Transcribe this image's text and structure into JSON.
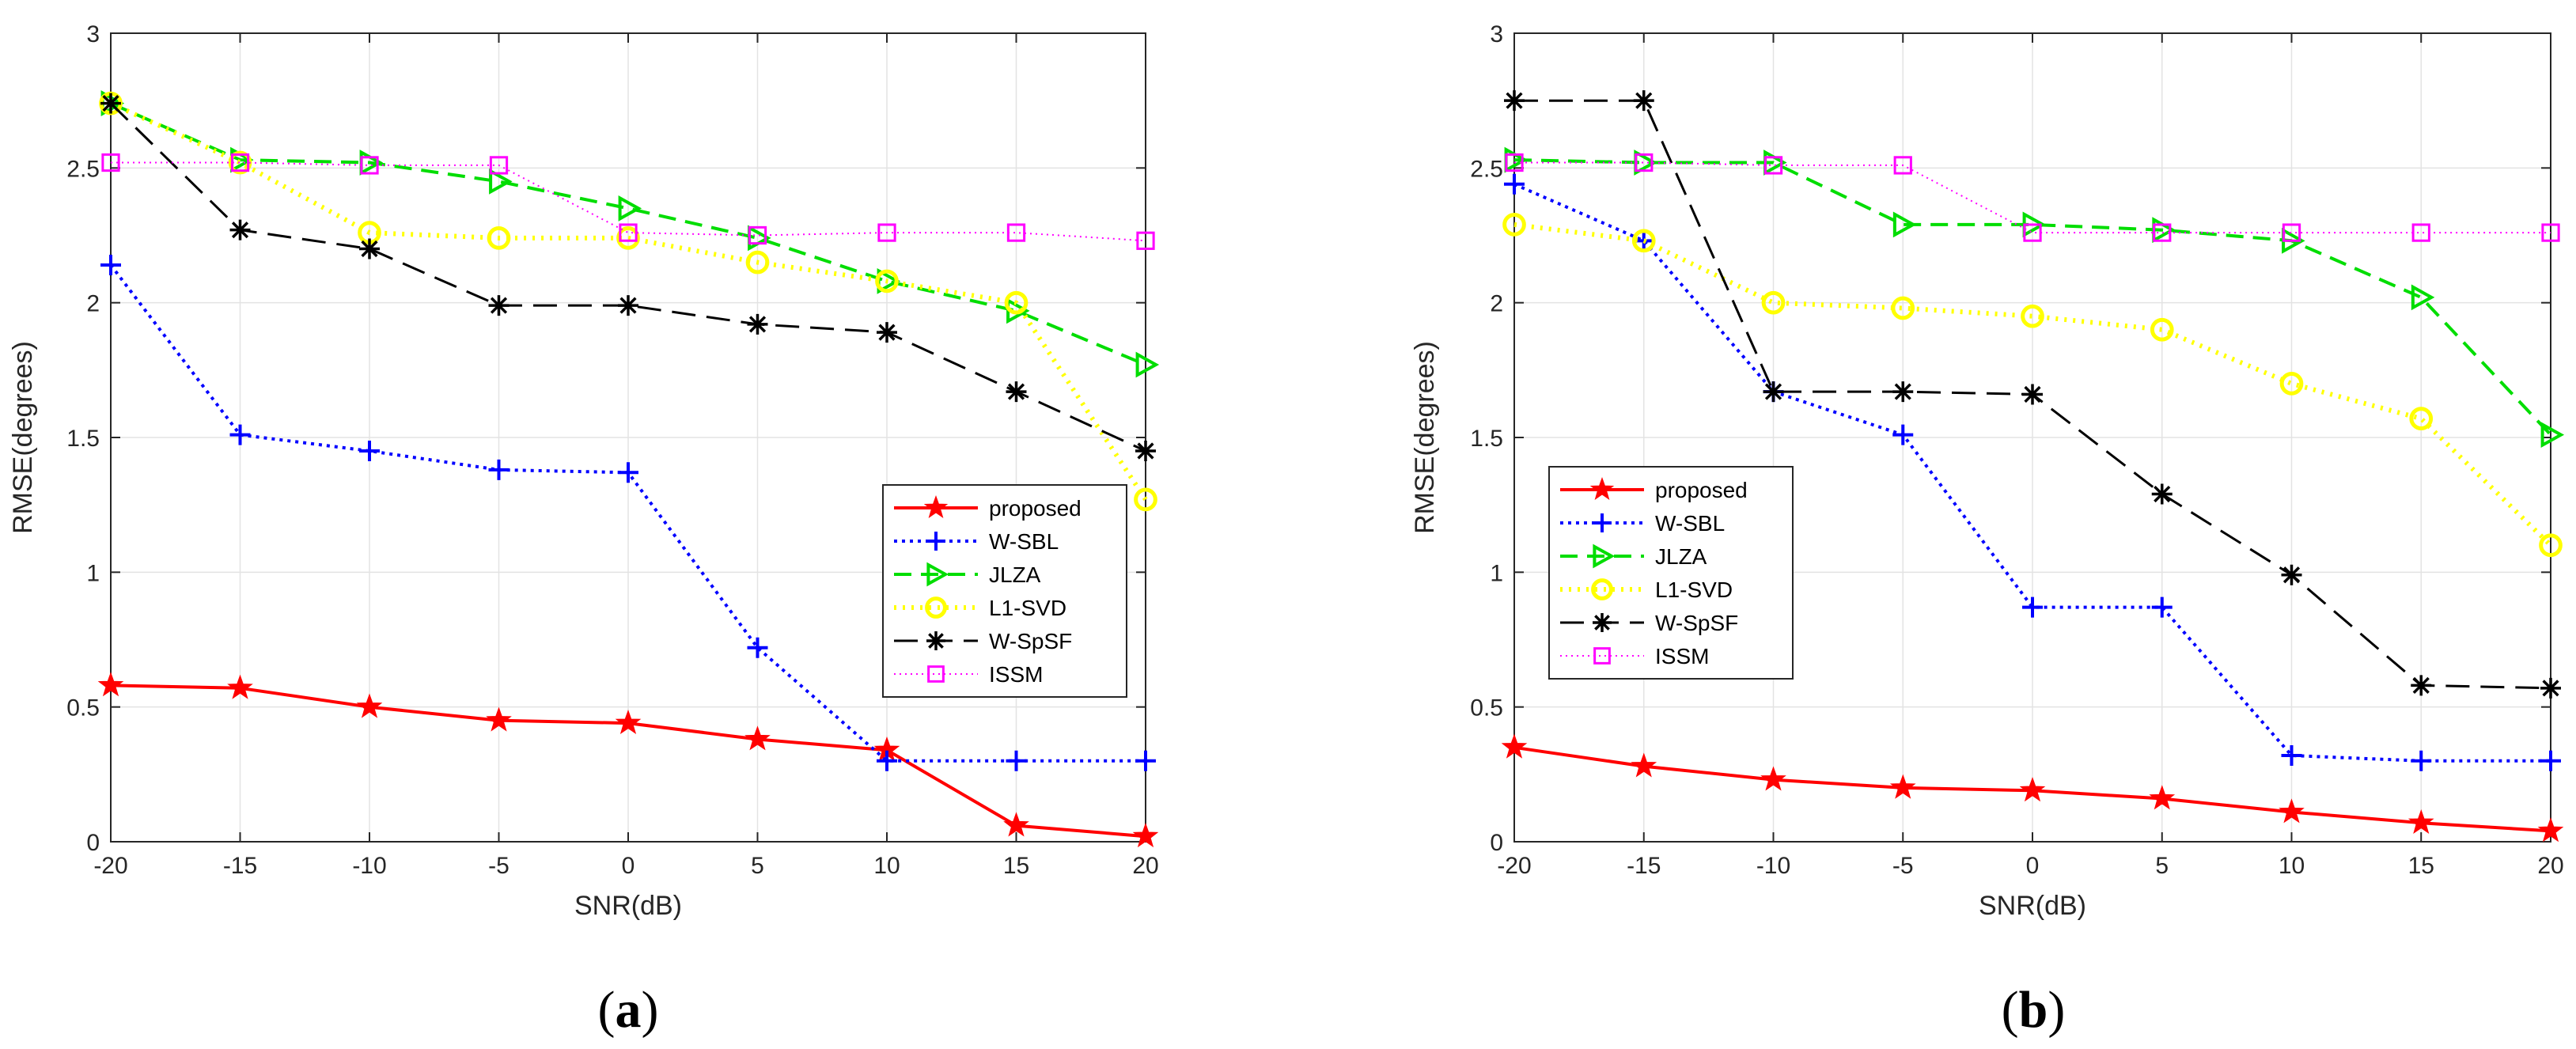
{
  "chart_data": [
    {
      "type": "line",
      "panel_label": "a",
      "caption": {
        "open": "(",
        "label": "a",
        "close": ")"
      },
      "xlabel": "SNR(dB)",
      "ylabel": "RMSE(degrees)",
      "xlim": [
        -20,
        20
      ],
      "ylim": [
        0,
        3
      ],
      "xticks": [
        -20,
        -15,
        -10,
        -5,
        0,
        5,
        10,
        15,
        20
      ],
      "yticks": [
        0,
        0.5,
        1,
        1.5,
        2,
        2.5,
        3
      ],
      "xtick_labels": [
        "-20",
        "-15",
        "-10",
        "-5",
        "0",
        "5",
        "10",
        "15",
        "20"
      ],
      "ytick_labels": [
        "0",
        "0.5",
        "1",
        "1.5",
        "2",
        "2.5",
        "3"
      ],
      "grid": true,
      "legend_position": "lower-right",
      "x": [
        -20,
        -15,
        -10,
        -5,
        0,
        5,
        10,
        15,
        20
      ],
      "series": [
        {
          "name": "proposed",
          "values": [
            0.58,
            0.57,
            0.5,
            0.45,
            0.44,
            0.38,
            0.34,
            0.06,
            0.02
          ],
          "color": "#ff0000",
          "marker": "star",
          "dash": "solid",
          "width": 4
        },
        {
          "name": "W-SBL",
          "values": [
            2.14,
            1.51,
            1.45,
            1.38,
            1.37,
            0.72,
            0.3,
            0.3,
            0.3
          ],
          "color": "#0000ff",
          "marker": "plus",
          "dash": "dotted",
          "width": 4
        },
        {
          "name": "JLZA",
          "values": [
            2.74,
            2.53,
            2.52,
            2.45,
            2.35,
            2.24,
            2.08,
            1.97,
            1.77
          ],
          "color": "#00dd00",
          "marker": "triangle",
          "dash": "dashed",
          "width": 4
        },
        {
          "name": "L1-SVD",
          "values": [
            2.74,
            2.52,
            2.26,
            2.24,
            2.24,
            2.15,
            2.08,
            2.0,
            1.27
          ],
          "color": "#ffff00",
          "marker": "circle",
          "dash": "dotted-thick",
          "width": 6
        },
        {
          "name": "W-SpSF",
          "values": [
            2.74,
            2.27,
            2.2,
            1.99,
            1.99,
            1.92,
            1.89,
            1.67,
            1.45
          ],
          "color": "#000000",
          "marker": "asterisk",
          "dash": "longdash",
          "width": 3
        },
        {
          "name": "ISSM",
          "values": [
            2.52,
            2.52,
            2.51,
            2.51,
            2.26,
            2.25,
            2.26,
            2.26,
            2.23
          ],
          "color": "#ff00ff",
          "marker": "square",
          "dash": "finedot",
          "width": 2
        }
      ]
    },
    {
      "type": "line",
      "panel_label": "b",
      "caption": {
        "open": "(",
        "label": "b",
        "close": ")"
      },
      "xlabel": "SNR(dB)",
      "ylabel": "RMSE(degrees)",
      "xlim": [
        -20,
        20
      ],
      "ylim": [
        0,
        3
      ],
      "xticks": [
        -20,
        -15,
        -10,
        -5,
        0,
        5,
        10,
        15,
        20
      ],
      "yticks": [
        0,
        0.5,
        1,
        1.5,
        2,
        2.5,
        3
      ],
      "xtick_labels": [
        "-20",
        "-15",
        "-10",
        "-5",
        "0",
        "5",
        "10",
        "15",
        "20"
      ],
      "ytick_labels": [
        "0",
        "0.5",
        "1",
        "1.5",
        "2",
        "2.5",
        "3"
      ],
      "grid": true,
      "legend_position": "lower-left",
      "x": [
        -20,
        -15,
        -10,
        -5,
        0,
        5,
        10,
        15,
        20
      ],
      "series": [
        {
          "name": "proposed",
          "values": [
            0.35,
            0.28,
            0.23,
            0.2,
            0.19,
            0.16,
            0.11,
            0.07,
            0.04
          ],
          "color": "#ff0000",
          "marker": "star",
          "dash": "solid",
          "width": 4
        },
        {
          "name": "W-SBL",
          "values": [
            2.44,
            2.23,
            1.67,
            1.51,
            0.87,
            0.87,
            0.32,
            0.3,
            0.3
          ],
          "color": "#0000ff",
          "marker": "plus",
          "dash": "dotted",
          "width": 4
        },
        {
          "name": "JLZA",
          "values": [
            2.53,
            2.52,
            2.52,
            2.29,
            2.29,
            2.27,
            2.23,
            2.02,
            1.51
          ],
          "color": "#00dd00",
          "marker": "triangle",
          "dash": "dashed",
          "width": 4
        },
        {
          "name": "L1-SVD",
          "values": [
            2.29,
            2.23,
            2.0,
            1.98,
            1.95,
            1.9,
            1.7,
            1.57,
            1.1
          ],
          "color": "#ffff00",
          "marker": "circle",
          "dash": "dotted-thick",
          "width": 6
        },
        {
          "name": "W-SpSF",
          "values": [
            2.75,
            2.75,
            1.67,
            1.67,
            1.66,
            1.29,
            0.99,
            0.58,
            0.57
          ],
          "color": "#000000",
          "marker": "asterisk",
          "dash": "longdash",
          "width": 3
        },
        {
          "name": "ISSM",
          "values": [
            2.52,
            2.52,
            2.51,
            2.51,
            2.26,
            2.26,
            2.26,
            2.26,
            2.26
          ],
          "color": "#ff00ff",
          "marker": "square",
          "dash": "finedot",
          "width": 2
        }
      ]
    }
  ]
}
